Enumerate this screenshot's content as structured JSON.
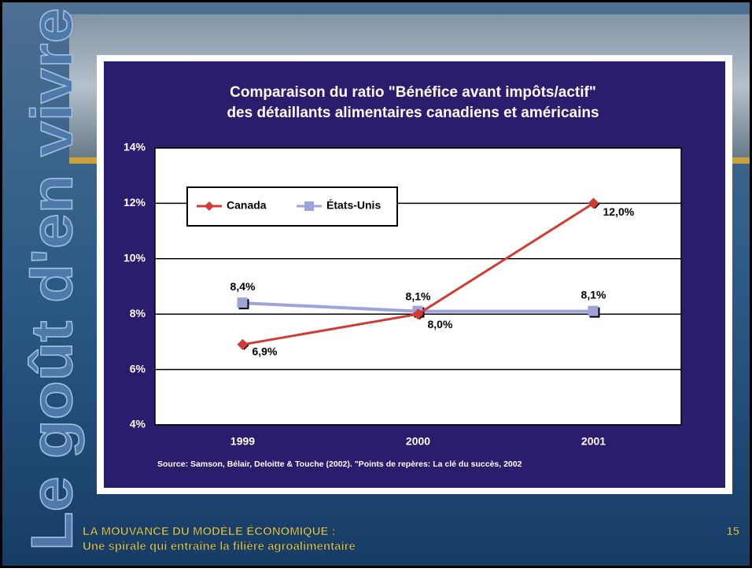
{
  "chart_data": {
    "type": "line",
    "title": [
      "Comparaison du ratio \"Bénéfice avant impôts/actif\"",
      "des détaillants alimentaires canadiens et américains"
    ],
    "categories": [
      "1999",
      "2000",
      "2001"
    ],
    "series": [
      {
        "name": "Canada",
        "color": "#d23a34",
        "marker": "diamond",
        "values": [
          6.9,
          8.0,
          12.0
        ],
        "value_labels": [
          "6,9%",
          "8,0%",
          "12,0%"
        ]
      },
      {
        "name": "États-Unis",
        "color": "#9ea3da",
        "marker": "square",
        "values": [
          8.4,
          8.1,
          8.1
        ],
        "value_labels": [
          "8,4%",
          "8,1%",
          "8,1%"
        ]
      }
    ],
    "ylim": [
      4,
      14
    ],
    "yticks": [
      {
        "value": 4,
        "label": "4%"
      },
      {
        "value": 6,
        "label": "6%"
      },
      {
        "value": 8,
        "label": "8%"
      },
      {
        "value": 10,
        "label": "10%"
      },
      {
        "value": 12,
        "label": "12%"
      },
      {
        "value": 14,
        "label": "14%"
      }
    ],
    "grid": true,
    "legend": "top-left",
    "source": "Source: Samson, Bélair, Deloitte & Touche (2002).  \"Points de repères: La clé du succès, 2002"
  },
  "slide": {
    "side_title": "Le goût d'en vivre",
    "footer": [
      "LA MOUVANCE DU MODÈLE ÉCONOMIQUE :",
      "Une spirale qui entraîne la filière agroalimentaire"
    ],
    "page_number": "15"
  }
}
